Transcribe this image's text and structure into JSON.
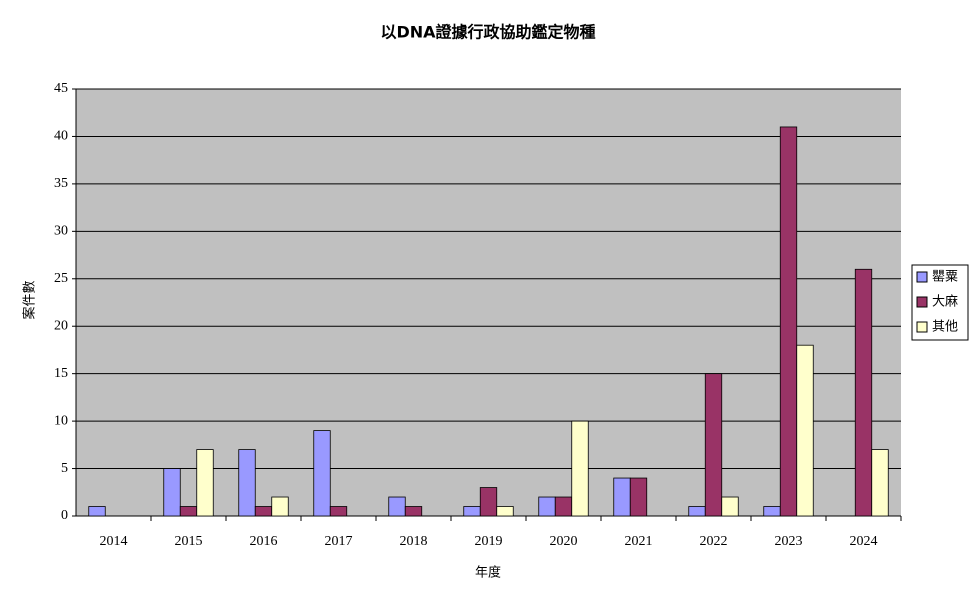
{
  "chart_data": {
    "type": "bar",
    "title": "以DNA證據行政協助鑑定物種",
    "x_label": "年度",
    "y_label": "案件數",
    "categories": [
      "2014",
      "2015",
      "2016",
      "2017",
      "2018",
      "2019",
      "2020",
      "2021",
      "2022",
      "2023",
      "2024"
    ],
    "series": [
      {
        "name": "罌粟",
        "color": "#9999ff",
        "values": [
          1,
          5,
          7,
          9,
          2,
          1,
          2,
          4,
          1,
          1,
          0
        ]
      },
      {
        "name": "大麻",
        "color": "#993366",
        "values": [
          0,
          1,
          1,
          1,
          1,
          3,
          2,
          4,
          15,
          41,
          26
        ]
      },
      {
        "name": "其他",
        "color": "#ffffcc",
        "values": [
          0,
          7,
          2,
          0,
          0,
          1,
          10,
          0,
          2,
          18,
          7
        ]
      }
    ],
    "ylim": [
      0,
      45
    ],
    "yticks": [
      0,
      5,
      10,
      15,
      20,
      25,
      30,
      35,
      40,
      45
    ],
    "grid": true,
    "legend": "right"
  }
}
